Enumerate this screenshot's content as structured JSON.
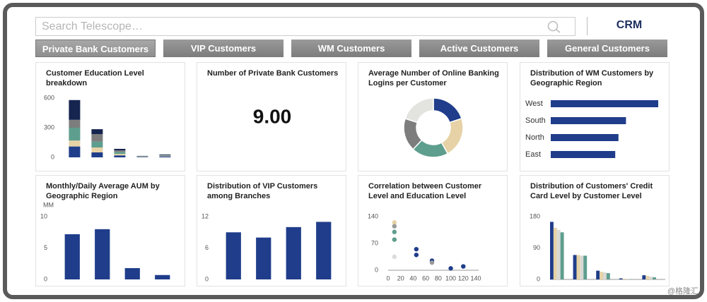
{
  "search": {
    "placeholder": "Search Telescope…"
  },
  "header": {
    "brand": "CRM"
  },
  "tabs": [
    "Private Bank Customers",
    "VIP Customers",
    "WM Customers",
    "Active Customers",
    "General Customers"
  ],
  "watermark": "@格隆汇",
  "chart_data": [
    {
      "type": "stacked_bar",
      "title": "Customer Education Level breakdown",
      "categories": [
        null,
        null,
        null,
        null,
        null
      ],
      "series": [
        {
          "color": "#1f3d8a",
          "values": [
            110,
            50,
            20,
            5,
            10
          ]
        },
        {
          "color": "#e6d2a6",
          "values": [
            60,
            50,
            15,
            3,
            5
          ]
        },
        {
          "color": "#5e9e8e",
          "values": [
            130,
            60,
            20,
            3,
            5
          ]
        },
        {
          "color": "#7d7d7d",
          "values": [
            80,
            75,
            15,
            2,
            5
          ]
        },
        {
          "color": "#16254f",
          "values": [
            200,
            50,
            16,
            2,
            5
          ]
        }
      ],
      "ylim": [
        0,
        600
      ],
      "yticks": [
        0,
        300,
        600
      ]
    },
    {
      "type": "kpi",
      "title": "Number of Private Bank Customers",
      "values": [
        9
      ],
      "value_labels": [
        "9.00"
      ]
    },
    {
      "type": "donut",
      "title": "Average Number of Online Banking Logins per Customer",
      "values": [
        20,
        22,
        20,
        18,
        20
      ],
      "colors": [
        "#1f3d8a",
        "#e6d2a6",
        "#5e9e8e",
        "#7d7d7d",
        "#e3e3e0"
      ]
    },
    {
      "type": "hbar",
      "title": "Distribution of WM Customers by Geographic Region",
      "categories": [
        "West",
        "South",
        "North",
        "East"
      ],
      "values": [
        100,
        70,
        63,
        60
      ],
      "color": "#1f3d8a"
    },
    {
      "type": "bar",
      "title": "Monthly/Daily Average AUM by Geographic Region",
      "ylabel": "MM",
      "categories": [
        null,
        null,
        null,
        null
      ],
      "values": [
        7.2,
        8,
        1.8,
        0.7
      ],
      "color": "#1f3d8a",
      "ylim": [
        0,
        10
      ],
      "yticks": [
        0,
        5,
        10
      ]
    },
    {
      "type": "bar",
      "title": "Distribution of VIP Customers among Branches",
      "categories": [
        null,
        null,
        null,
        null
      ],
      "values": [
        9,
        8,
        10,
        11
      ],
      "color": "#1f3d8a",
      "ylim": [
        0,
        12
      ],
      "yticks": [
        0,
        6,
        12
      ]
    },
    {
      "type": "scatter",
      "title": "Correlation between Customer Level and Education Level",
      "series": [
        {
          "color": "#1f3d8a",
          "x": [
            45,
            45,
            70,
            100,
            120
          ],
          "y": [
            55,
            40,
            25,
            5,
            10
          ]
        },
        {
          "color": "#5e9e8e",
          "x": [
            10,
            10
          ],
          "y": [
            100,
            80
          ]
        },
        {
          "color": "#e6d2a6",
          "x": [
            10
          ],
          "y": [
            125
          ]
        },
        {
          "color": "#9a9a9a",
          "x": [
            10,
            70
          ],
          "y": [
            115,
            20
          ]
        },
        {
          "color": "#dcdcdc",
          "x": [
            10
          ],
          "y": [
            35
          ]
        }
      ],
      "xlim": [
        0,
        140
      ],
      "xticks": [
        0,
        20,
        40,
        60,
        80,
        100,
        120,
        140
      ],
      "ylim": [
        0,
        140
      ],
      "yticks": [
        0,
        70,
        140
      ]
    },
    {
      "type": "grouped_bar",
      "title": "Distribution of Customers' Credit Card Level by Customer Level",
      "categories": [
        null,
        null,
        null,
        null,
        null
      ],
      "series": [
        {
          "color": "#1f3d8a",
          "values": [
            165,
            70,
            25,
            3,
            12
          ]
        },
        {
          "color": "#e6d2a6",
          "values": [
            148,
            70,
            22,
            2,
            10
          ]
        },
        {
          "color": "#d9d9d4",
          "values": [
            142,
            68,
            20,
            2,
            8
          ]
        },
        {
          "color": "#5e9e8e",
          "values": [
            135,
            68,
            18,
            1,
            6
          ]
        }
      ],
      "ylim": [
        0,
        180
      ],
      "yticks": [
        0,
        90,
        180
      ]
    }
  ]
}
